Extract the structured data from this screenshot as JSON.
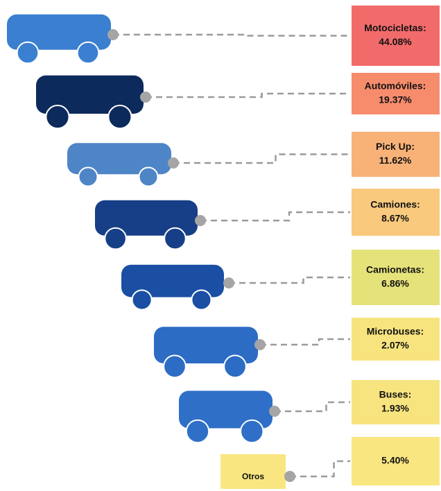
{
  "chart_data": {
    "type": "pictogram",
    "categories": [
      "Motocicletas:",
      "Automóviles:",
      "Pick Up:",
      "Camiones:",
      "Camionetas:",
      "Microbuses:",
      "Buses:",
      "Otros"
    ],
    "values": [
      44.08,
      19.37,
      11.62,
      8.67,
      6.86,
      2.07,
      1.93,
      5.4
    ],
    "value_labels": [
      "44.08%",
      "19.37%",
      "11.62%",
      "8.67%",
      "6.86%",
      "2.07%",
      "1.93%",
      "5.40%"
    ],
    "colors": [
      "#f26b6b",
      "#f68c6c",
      "#f8b278",
      "#f9c97e",
      "#e5e27a",
      "#f7e47f",
      "#f8e47f",
      "#f9e680"
    ]
  }
}
